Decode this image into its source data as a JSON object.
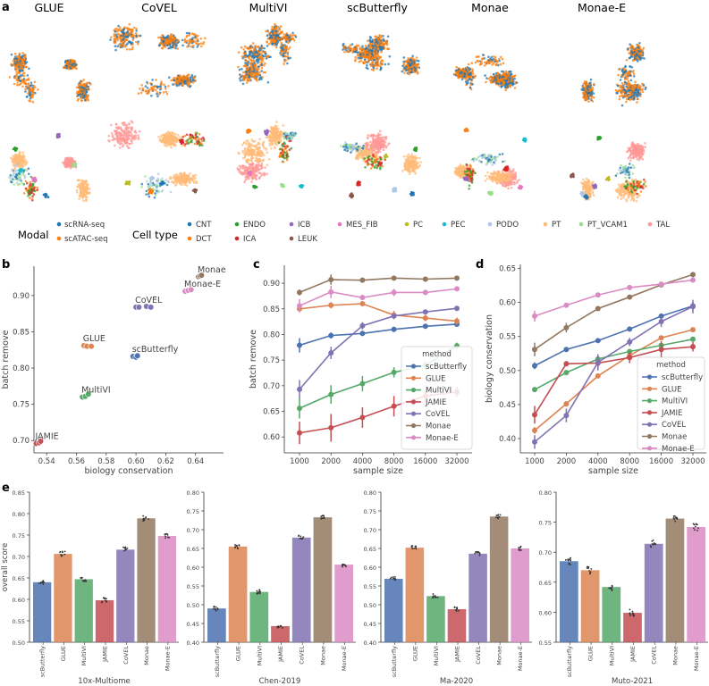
{
  "panel_labels": {
    "a": "a",
    "b": "b",
    "c": "c",
    "d": "d",
    "e": "e"
  },
  "methods_umap": [
    "GLUE",
    "CoVEL",
    "MultiVI",
    "scButterfly",
    "Monae",
    "Monae-E"
  ],
  "legend": {
    "modal_title": "Modal",
    "modal": [
      {
        "label": "scRNA-seq",
        "color": "#1f77b4"
      },
      {
        "label": "scATAC-seq",
        "color": "#ff7f0e"
      }
    ],
    "celltype_title": "Cell type",
    "celltypes": [
      {
        "label": "CNT",
        "color": "#1f77b4"
      },
      {
        "label": "DCT",
        "color": "#ff7f0e"
      },
      {
        "label": "ENDO",
        "color": "#2ca02c"
      },
      {
        "label": "ICA",
        "color": "#d62728"
      },
      {
        "label": "ICB",
        "color": "#9467bd"
      },
      {
        "label": "LEUK",
        "color": "#8c564b"
      },
      {
        "label": "MES_FIB",
        "color": "#e377c2"
      },
      {
        "label": "PC",
        "color": "#bcbd22"
      },
      {
        "label": "PEC",
        "color": "#17becf"
      },
      {
        "label": "PODO",
        "color": "#aec7e8"
      },
      {
        "label": "PT",
        "color": "#ffbb78"
      },
      {
        "label": "PT_VCAM1",
        "color": "#98df8a"
      },
      {
        "label": "TAL",
        "color": "#ff9896"
      }
    ]
  },
  "method_colors": {
    "scButterfly": "#4c72b0",
    "GLUE": "#dd8452",
    "MultiVI": "#55a868",
    "JAMIE": "#c44e52",
    "CoVEL": "#8172b3",
    "Monae": "#937860",
    "Monae-E": "#da8bc3"
  },
  "chart_data": [
    {
      "id": "b",
      "type": "scatter",
      "xlabel": "biology conservation",
      "ylabel": "batch remove",
      "xlim": [
        0.5315,
        0.6588
      ],
      "ylim": [
        0.683,
        0.9405
      ],
      "xticks": [
        0.54,
        0.56,
        0.58,
        0.6,
        0.62,
        0.64
      ],
      "yticks": [
        0.7,
        0.75,
        0.8,
        0.85,
        0.9
      ],
      "points": [
        {
          "label": "JAMIE",
          "x": [
            0.533,
            0.535,
            0.536
          ],
          "y": [
            0.696,
            0.697,
            0.699
          ]
        },
        {
          "label": "MultiVI",
          "x": [
            0.564,
            0.566,
            0.568
          ],
          "y": [
            0.76,
            0.761,
            0.764
          ]
        },
        {
          "label": "GLUE",
          "x": [
            0.565,
            0.567,
            0.57
          ],
          "y": [
            0.831,
            0.83,
            0.83
          ]
        },
        {
          "label": "scButterfly",
          "x": [
            0.598,
            0.6,
            0.601
          ],
          "y": [
            0.816,
            0.815,
            0.817
          ]
        },
        {
          "label": "CoVEL",
          "x": [
            0.6,
            0.602,
            0.607,
            0.61
          ],
          "y": [
            0.884,
            0.884,
            0.885,
            0.884
          ]
        },
        {
          "label": "Monae-E",
          "x": [
            0.633,
            0.635,
            0.637
          ],
          "y": [
            0.906,
            0.907,
            0.908
          ]
        },
        {
          "label": "Monae",
          "x": [
            0.642,
            0.643,
            0.644
          ],
          "y": [
            0.926,
            0.927,
            0.928
          ]
        }
      ]
    },
    {
      "id": "c",
      "type": "line",
      "xlabel": "sample size",
      "ylabel": "batch remove",
      "legend_title": "method",
      "legend_position": "lower-right",
      "x": [
        "1000",
        "2000",
        "4000",
        "8000",
        "16000",
        "32000"
      ],
      "ylim": [
        0.569,
        0.935
      ],
      "yticks": [
        0.6,
        0.65,
        0.7,
        0.75,
        0.8,
        0.85,
        0.9
      ],
      "series": [
        {
          "name": "scButterfly",
          "values": [
            0.779,
            0.798,
            0.802,
            0.81,
            0.816,
            0.82
          ],
          "err": [
            0.014,
            0.006,
            0.005,
            0.005,
            0.004,
            0.004
          ]
        },
        {
          "name": "GLUE",
          "values": [
            0.85,
            0.857,
            0.86,
            0.838,
            0.832,
            0.826
          ],
          "err": [
            0.006,
            0.006,
            0.004,
            0.008,
            0.006,
            0.007
          ]
        },
        {
          "name": "MultiVI",
          "values": [
            0.656,
            0.683,
            0.704,
            0.726,
            0.74,
            0.778
          ],
          "err": [
            0.02,
            0.018,
            0.015,
            0.01,
            0.008,
            0.006
          ]
        },
        {
          "name": "JAMIE",
          "values": [
            0.608,
            0.618,
            0.638,
            0.66,
            0.68,
            0.688
          ],
          "err": [
            0.022,
            0.027,
            0.02,
            0.02,
            0.012,
            0.01
          ]
        },
        {
          "name": "CoVEL",
          "values": [
            0.693,
            0.764,
            0.817,
            0.836,
            0.844,
            0.851
          ],
          "err": [
            0.018,
            0.012,
            0.007,
            0.005,
            0.004,
            0.003
          ]
        },
        {
          "name": "Monae",
          "values": [
            0.882,
            0.907,
            0.906,
            0.91,
            0.908,
            0.91
          ],
          "err": [
            0.006,
            0.01,
            0.003,
            0.003,
            0.003,
            0.003
          ]
        },
        {
          "name": "Monae-E",
          "values": [
            0.856,
            0.883,
            0.872,
            0.882,
            0.882,
            0.889
          ],
          "err": [
            0.013,
            0.012,
            0.005,
            0.007,
            0.005,
            0.004
          ]
        }
      ]
    },
    {
      "id": "d",
      "type": "line",
      "xlabel": "sample size",
      "ylabel": "biology conservation",
      "legend_title": "method",
      "legend_position": "lower-right",
      "x": [
        "1000",
        "2000",
        "4000",
        "8000",
        "16000",
        "32000"
      ],
      "ylim": [
        0.379,
        0.656
      ],
      "yticks": [
        0.4,
        0.45,
        0.5,
        0.55,
        0.6,
        0.65
      ],
      "series": [
        {
          "name": "scButterfly",
          "values": [
            0.507,
            0.531,
            0.544,
            0.561,
            0.58,
            0.595
          ],
          "err": [
            0.005,
            0.003,
            0.003,
            0.003,
            0.003,
            0.006
          ]
        },
        {
          "name": "GLUE",
          "values": [
            0.412,
            0.451,
            0.492,
            0.522,
            0.548,
            0.56
          ],
          "err": [
            0.005,
            0.004,
            0.003,
            0.003,
            0.003,
            0.003
          ]
        },
        {
          "name": "MultiVI",
          "values": [
            0.472,
            0.497,
            0.517,
            0.528,
            0.537,
            0.546
          ],
          "err": [
            0.003,
            0.003,
            0.003,
            0.003,
            0.003,
            0.003
          ]
        },
        {
          "name": "JAMIE",
          "values": [
            0.435,
            0.51,
            0.511,
            0.519,
            0.531,
            0.535
          ],
          "err": [
            0.013,
            0.004,
            0.008,
            0.008,
            0.012,
            0.007
          ]
        },
        {
          "name": "CoVEL",
          "values": [
            0.395,
            0.434,
            0.512,
            0.542,
            0.572,
            0.594
          ],
          "err": [
            0.01,
            0.01,
            0.012,
            0.006,
            0.008,
            0.01
          ]
        },
        {
          "name": "Monae",
          "values": [
            0.531,
            0.563,
            0.591,
            0.608,
            0.626,
            0.641
          ],
          "err": [
            0.01,
            0.007,
            0.003,
            0.003,
            0.003,
            0.003
          ]
        },
        {
          "name": "Monae-E",
          "values": [
            0.58,
            0.596,
            0.611,
            0.622,
            0.627,
            0.633
          ],
          "err": [
            0.008,
            0.003,
            0.003,
            0.003,
            0.003,
            0.003
          ]
        }
      ]
    },
    {
      "id": "e1",
      "type": "bar",
      "title": "10x-Multiome",
      "ylabel": "overall score",
      "ylim": [
        0.5,
        0.85
      ],
      "yticks": [
        0.5,
        0.55,
        0.6,
        0.65,
        0.7,
        0.75,
        0.8,
        0.85
      ],
      "categories": [
        "scButterfly",
        "GLUE",
        "MultiVI",
        "JAMIE",
        "CoVEL",
        "Monae",
        "Monae-E"
      ],
      "values": [
        0.64,
        0.706,
        0.647,
        0.598,
        0.716,
        0.789,
        0.748
      ]
    },
    {
      "id": "e2",
      "type": "bar",
      "title": "Chen-2019",
      "ylabel": "",
      "ylim": [
        0.4,
        0.8
      ],
      "yticks": [
        0.4,
        0.45,
        0.5,
        0.55,
        0.6,
        0.65,
        0.7,
        0.75,
        0.8
      ],
      "categories": [
        "scButterfly",
        "GLUE",
        "MultiVI",
        "JAMIE",
        "CoVEL",
        "Monae",
        "Monae-E"
      ],
      "values": [
        0.49,
        0.655,
        0.534,
        0.443,
        0.679,
        0.733,
        0.607
      ]
    },
    {
      "id": "e3",
      "type": "bar",
      "title": "Ma-2020",
      "ylabel": "",
      "ylim": [
        0.4,
        0.8
      ],
      "yticks": [
        0.4,
        0.45,
        0.5,
        0.55,
        0.6,
        0.65,
        0.7,
        0.75,
        0.8
      ],
      "categories": [
        "scButterfly",
        "GLUE",
        "MultiVI",
        "JAMIE",
        "CoVEL",
        "Monae",
        "Monae-E"
      ],
      "values": [
        0.569,
        0.652,
        0.523,
        0.488,
        0.636,
        0.735,
        0.65
      ]
    },
    {
      "id": "e4",
      "type": "bar",
      "title": "Muto-2021",
      "ylabel": "",
      "ylim": [
        0.55,
        0.8
      ],
      "yticks": [
        0.55,
        0.6,
        0.65,
        0.7,
        0.75,
        0.8
      ],
      "categories": [
        "scButterfly",
        "GLUE",
        "MultiVI",
        "JAMIE",
        "CoVEL",
        "Monae",
        "Monae-E"
      ],
      "values": [
        0.685,
        0.67,
        0.642,
        0.599,
        0.714,
        0.756,
        0.742
      ]
    }
  ]
}
